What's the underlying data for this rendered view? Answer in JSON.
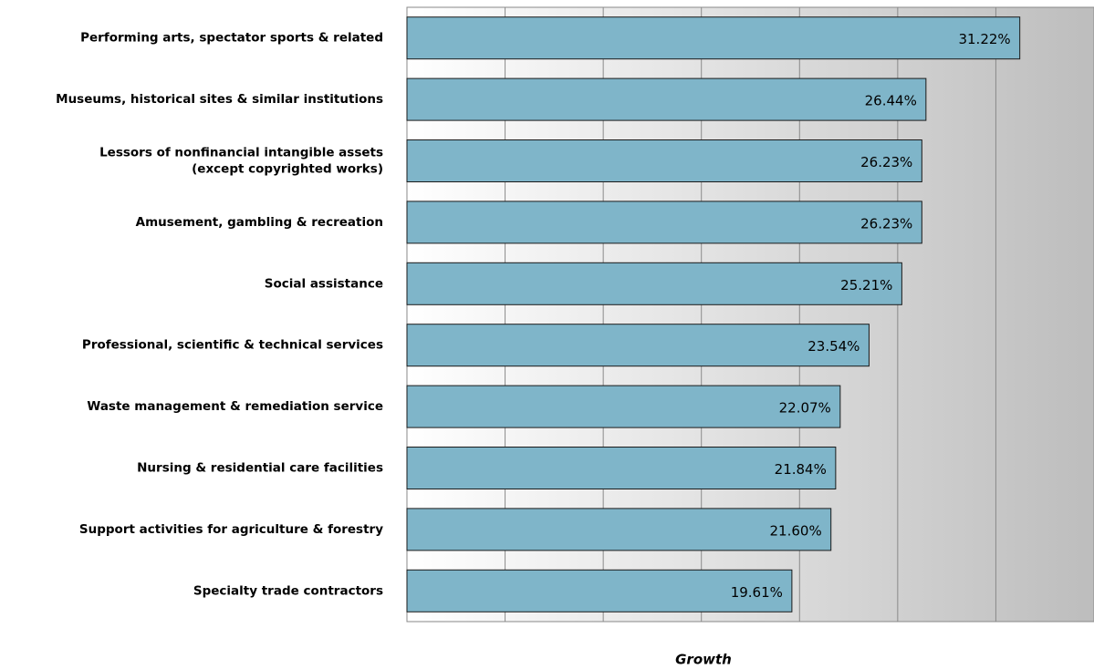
{
  "chart_data": {
    "type": "bar",
    "orientation": "horizontal",
    "x_label": "Growth",
    "categories": [
      "Performing arts, spectator sports & related",
      "Museums, historical sites & similar institutions",
      "Lessors of nonfinancial intangible assets\n(except copyrighted works)",
      "Amusement, gambling & recreation",
      "Social assistance",
      "Professional, scientific & technical services",
      "Waste management & remediation service",
      "Nursing & residential care facilities",
      "Support activities for agriculture & forestry",
      "Specialty trade contractors"
    ],
    "values": [
      31.22,
      26.44,
      26.23,
      26.23,
      25.21,
      23.54,
      22.07,
      21.84,
      21.6,
      19.61
    ],
    "value_labels": [
      "31.22%",
      "26.44%",
      "26.23%",
      "26.23%",
      "25.21%",
      "23.54%",
      "22.07%",
      "21.84%",
      "21.60%",
      "19.61%"
    ],
    "color": "#7fb5c9",
    "xlim": [
      0,
      35
    ],
    "xticks": [
      0,
      5,
      10,
      15,
      20,
      25,
      30,
      35
    ],
    "grid": true
  }
}
